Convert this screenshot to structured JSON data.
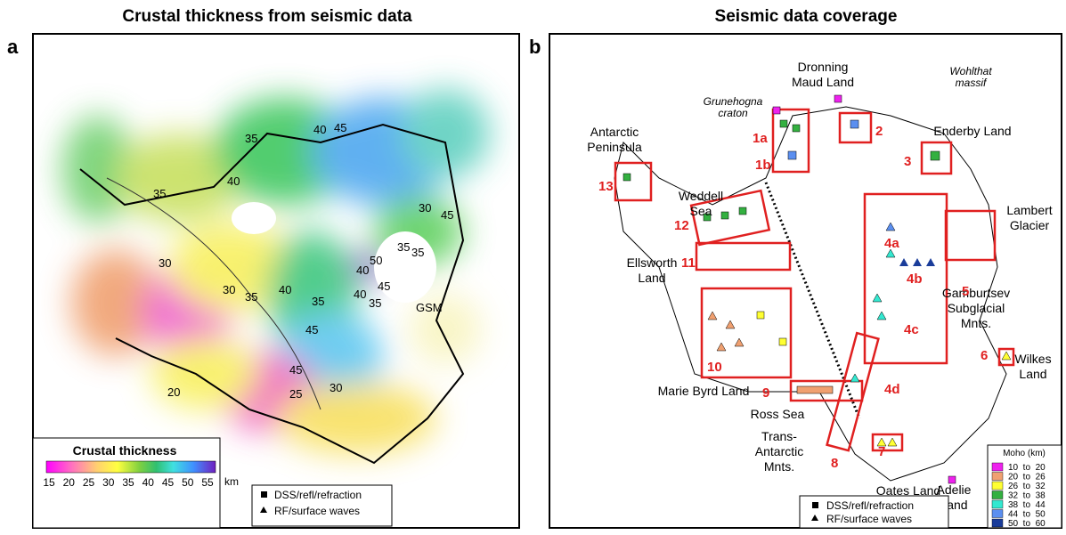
{
  "panel_a": {
    "title": "Crustal thickness from seismic data",
    "label": "a",
    "contour_labels": [
      "35",
      "45",
      "40",
      "40",
      "35",
      "30",
      "30",
      "35",
      "40",
      "35",
      "45",
      "50",
      "35",
      "40",
      "45",
      "35",
      "45",
      "20",
      "25",
      "30",
      "30",
      "35",
      "40",
      "45"
    ],
    "place_label": "GSM",
    "legend": {
      "title": "Crustal thickness",
      "ticks": [
        15,
        20,
        25,
        30,
        35,
        40,
        45,
        50,
        55
      ],
      "unit": "km"
    },
    "symbols": [
      "DSS/refl/refraction",
      "RF/surface waves"
    ]
  },
  "panel_b": {
    "title": "Seismic data coverage",
    "label": "b",
    "regions": [
      {
        "lines": [
          "Dronning",
          "Maud Land"
        ]
      },
      {
        "lines": [
          "Wohlthat",
          "massif"
        ]
      },
      {
        "lines": [
          "Grunehogna",
          "craton"
        ]
      },
      {
        "lines": [
          "Enderby Land"
        ]
      },
      {
        "lines": [
          "Antarctic",
          "Peninsula"
        ]
      },
      {
        "lines": [
          "Weddell",
          "Sea"
        ]
      },
      {
        "lines": [
          "Lambert",
          "Glacier"
        ]
      },
      {
        "lines": [
          "Ellsworth",
          "Land"
        ]
      },
      {
        "lines": [
          "Gamburtsev",
          "Subglacial",
          "Mnts."
        ]
      },
      {
        "lines": [
          "Wilkes",
          "Land"
        ]
      },
      {
        "lines": [
          "Marie Byrd Land"
        ]
      },
      {
        "lines": [
          "Ross Sea"
        ]
      },
      {
        "lines": [
          "Trans-",
          "Antarctic",
          "Mnts."
        ]
      },
      {
        "lines": [
          "Oates Land"
        ]
      },
      {
        "lines": [
          "Adelie",
          "Land"
        ]
      }
    ],
    "boxes": [
      "1a",
      "1b",
      "2",
      "3",
      "4a",
      "4b",
      "4c",
      "4d",
      "5",
      "6",
      "7",
      "8",
      "9",
      "10",
      "11",
      "12",
      "13"
    ],
    "moho_legend": {
      "title": "Moho (km)",
      "classes": [
        {
          "label": "10  to  20",
          "color": "#ee22ee"
        },
        {
          "label": "20  to  26",
          "color": "#f0a070"
        },
        {
          "label": "26  to  32",
          "color": "#ffff33"
        },
        {
          "label": "32  to  38",
          "color": "#33b040"
        },
        {
          "label": "38  to  44",
          "color": "#33e8d0"
        },
        {
          "label": "44  to  50",
          "color": "#5b8ff0"
        },
        {
          "label": "50  to  60",
          "color": "#1a3c9a"
        }
      ]
    },
    "symbols": [
      "DSS/refl/refraction",
      "RF/surface waves"
    ]
  }
}
